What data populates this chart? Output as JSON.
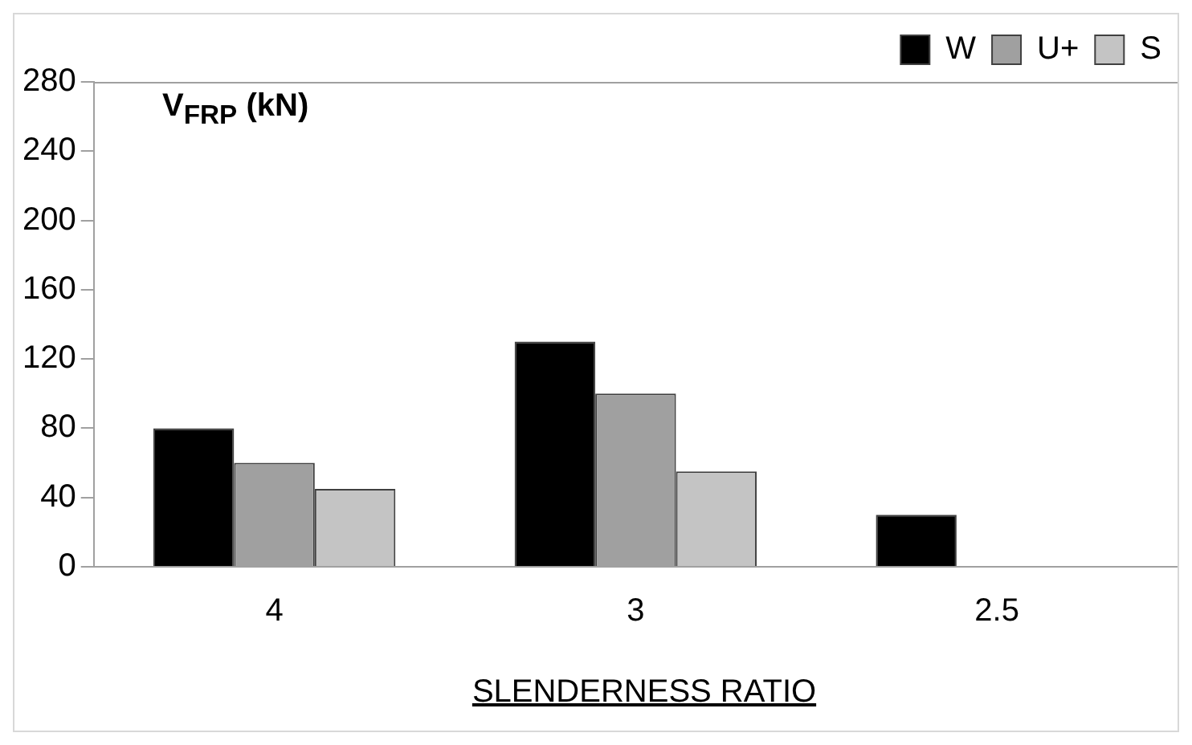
{
  "chart_data": {
    "type": "bar",
    "ylabel": "V$_{FRP}$ (kN)",
    "xlabel": "SLENDERNESS RATIO",
    "categories": [
      "4",
      "3",
      "2.5"
    ],
    "series": [
      {
        "name": "W",
        "color": "#000000",
        "values": [
          80,
          130,
          30
        ]
      },
      {
        "name": "U+",
        "color": "#a0a0a0",
        "values": [
          60,
          100,
          null
        ]
      },
      {
        "name": "S",
        "color": "#c4c4c4",
        "values": [
          45,
          55,
          null
        ]
      }
    ],
    "ylim": [
      0,
      280
    ],
    "yticks": [
      0,
      40,
      80,
      120,
      160,
      200,
      240,
      280
    ],
    "grid": false,
    "legend": "top right"
  }
}
